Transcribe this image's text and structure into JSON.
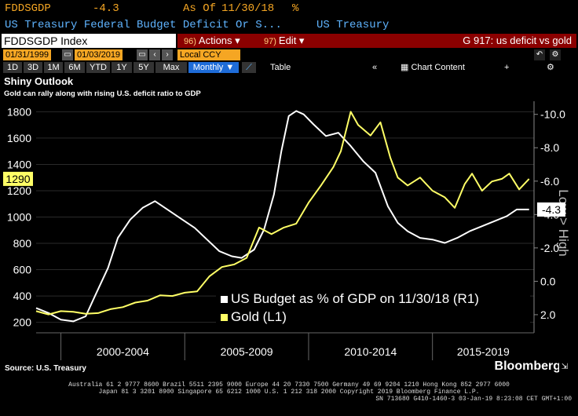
{
  "header": {
    "ticker": "FDDSGDP",
    "value": "-4.3",
    "as_of_label": "As Of",
    "as_of_date": "11/30/18",
    "pct": "%",
    "description": "US Treasury Federal Budget Deficit Or S...",
    "source_name": "US Treasury"
  },
  "toolbar": {
    "index_label": "FDDSGDP Index",
    "actions_num": "96)",
    "actions_label": "Actions ▾",
    "edit_num": "97)",
    "edit_label": "Edit ▾",
    "chart_title": "G 917: us deficit vs gold",
    "start_date": "01/31/1999",
    "end_date": "01/03/2019",
    "currency": "Local CCY",
    "periods": [
      "1D",
      "3D",
      "1M",
      "6M",
      "YTD",
      "1Y",
      "5Y",
      "Max"
    ],
    "frequency": "Monthly ▼",
    "table_label": "Table",
    "chart_content_label": "Chart Content"
  },
  "chart_data": {
    "type": "line",
    "title": "Shiny Outlook",
    "subtitle": "Gold can rally along with rising U.S. deficit ratio to GDP",
    "left_axis": {
      "ticks": [
        200,
        400,
        600,
        800,
        1000,
        1200,
        1400,
        1600,
        1800
      ],
      "ylim": [
        150,
        1850
      ]
    },
    "right_axis": {
      "label": "Low > High",
      "ticks": [
        "-10.0",
        "-8.0",
        "-6.0",
        "-4.0",
        "-2.0",
        "0.0",
        "2.0"
      ],
      "ylim": [
        2.85,
        -10.55
      ]
    },
    "x_groups": [
      "2000-2004",
      "2005-2009",
      "2010-2014",
      "2015-2019"
    ],
    "xlim": [
      1999.0,
      2019.1
    ],
    "current_left_label": "1290",
    "current_right_label": "-4.3",
    "series": [
      {
        "name": "US Budget as % of GDP on 11/30/18 (R1)",
        "color": "#ffffff",
        "axis": "right",
        "x": [
          1999.0,
          1999.5,
          2000.0,
          2000.5,
          2001.0,
          2001.4,
          2001.9,
          2002.3,
          2002.8,
          2003.3,
          2003.8,
          2004.3,
          2004.8,
          2005.4,
          2005.9,
          2006.4,
          2006.9,
          2007.3,
          2007.8,
          2008.2,
          2008.6,
          2008.9,
          2009.2,
          2009.5,
          2009.8,
          2010.2,
          2010.7,
          2011.2,
          2011.7,
          2012.2,
          2012.7,
          2013.2,
          2013.6,
          2014.0,
          2014.5,
          2015.0,
          2015.5,
          2016.0,
          2016.5,
          2017.0,
          2017.5,
          2018.0,
          2018.4,
          2018.9
        ],
        "values": [
          1.6,
          1.9,
          2.3,
          2.4,
          2.1,
          0.8,
          -0.8,
          -2.6,
          -3.7,
          -4.4,
          -4.8,
          -4.3,
          -3.8,
          -3.2,
          -2.5,
          -1.8,
          -1.5,
          -1.4,
          -1.9,
          -3.1,
          -5.2,
          -7.8,
          -9.9,
          -10.2,
          -10.0,
          -9.4,
          -8.7,
          -8.9,
          -8.1,
          -7.2,
          -6.5,
          -4.5,
          -3.5,
          -3.0,
          -2.6,
          -2.5,
          -2.3,
          -2.6,
          -3.0,
          -3.3,
          -3.6,
          -3.9,
          -4.3,
          -4.3
        ]
      },
      {
        "name": "Gold (L1)",
        "color": "#ffff66",
        "axis": "left",
        "x": [
          1999.0,
          1999.5,
          2000.0,
          2000.5,
          2001.0,
          2001.5,
          2002.0,
          2002.5,
          2003.0,
          2003.5,
          2004.0,
          2004.5,
          2005.0,
          2005.5,
          2006.0,
          2006.5,
          2007.0,
          2007.5,
          2008.0,
          2008.5,
          2009.0,
          2009.5,
          2010.0,
          2010.5,
          2011.0,
          2011.3,
          2011.7,
          2012.0,
          2012.5,
          2012.9,
          2013.3,
          2013.6,
          2014.0,
          2014.5,
          2015.0,
          2015.5,
          2015.9,
          2016.3,
          2016.6,
          2017.0,
          2017.4,
          2017.8,
          2018.1,
          2018.5,
          2018.9
        ],
        "values": [
          285,
          260,
          285,
          280,
          265,
          270,
          300,
          315,
          350,
          365,
          405,
          400,
          425,
          435,
          550,
          620,
          640,
          690,
          920,
          870,
          920,
          950,
          1110,
          1240,
          1380,
          1500,
          1800,
          1700,
          1620,
          1720,
          1450,
          1300,
          1240,
          1300,
          1200,
          1150,
          1070,
          1250,
          1330,
          1200,
          1270,
          1290,
          1330,
          1210,
          1290
        ]
      }
    ]
  },
  "source": "Source: U.S. Treasury",
  "brand": "Bloomberg",
  "footer": {
    "line1": "Australia 61 2 9777 8600 Brazil 5511 2395 9000 Europe 44 20 7330 7500 Germany 49 69 9204 1210 Hong Kong 852 2977 6000",
    "line2": "Japan 81 3 3201 8900        Singapore 65 6212 1000        U.S. 1 212 318 2000        Copyright 2019 Bloomberg Finance L.P.",
    "line3": "SN 713680 G410-1460-3 03-Jan-19  8:23:08 CET  GMT+1:00"
  }
}
